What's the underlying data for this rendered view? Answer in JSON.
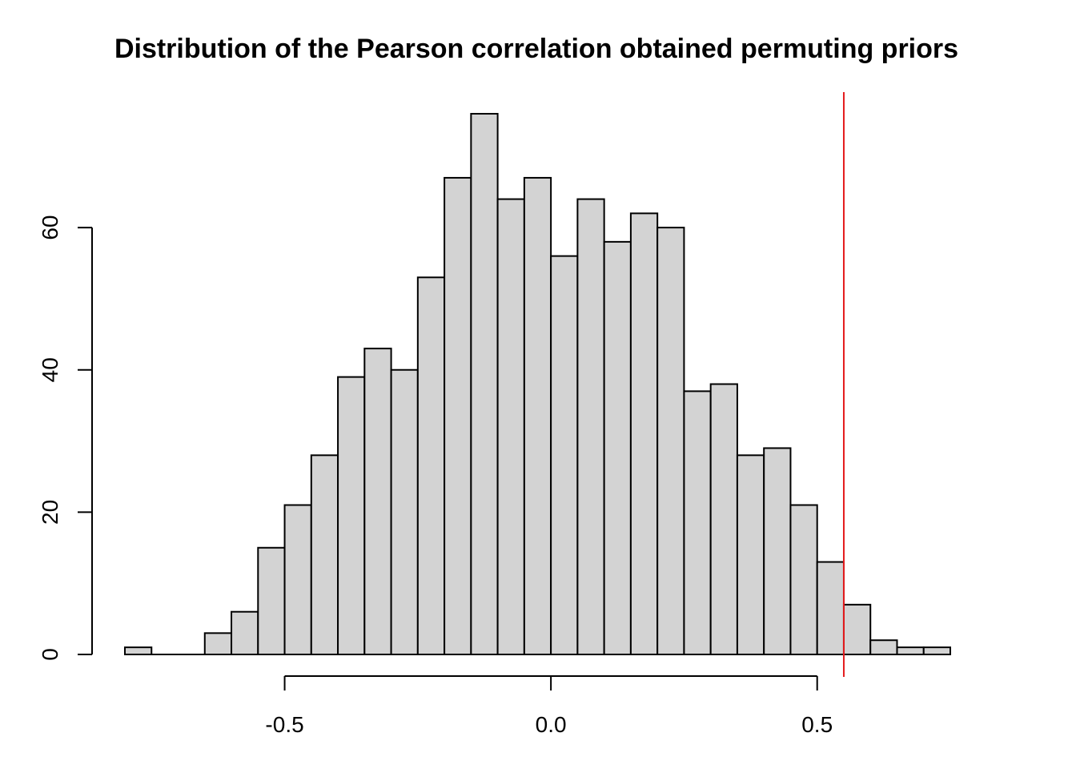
{
  "chart_data": {
    "type": "bar",
    "title": "Distribution of the Pearson correlation obtained permuting priors",
    "xlabel": "",
    "ylabel": "",
    "bin_width": 0.05,
    "bins_start": [
      -0.8,
      -0.75,
      -0.7,
      -0.65,
      -0.6,
      -0.55,
      -0.5,
      -0.45,
      -0.4,
      -0.35,
      -0.3,
      -0.25,
      -0.2,
      -0.15,
      -0.1,
      -0.05,
      0.0,
      0.05,
      0.1,
      0.15,
      0.2,
      0.25,
      0.3,
      0.35,
      0.4,
      0.45,
      0.5,
      0.55,
      0.6,
      0.65,
      0.7
    ],
    "values": [
      1,
      0,
      0,
      3,
      6,
      15,
      21,
      28,
      39,
      43,
      40,
      53,
      67,
      76,
      64,
      67,
      56,
      64,
      58,
      62,
      60,
      37,
      38,
      28,
      29,
      21,
      13,
      7,
      2,
      1,
      1
    ],
    "xlim": [
      -0.8,
      0.75
    ],
    "ylim": [
      0,
      76
    ],
    "x_ticks": [
      -0.5,
      0.0,
      0.5
    ],
    "x_tick_labels": [
      "-0.5",
      "0.0",
      "0.5"
    ],
    "y_ticks": [
      0,
      20,
      40,
      60
    ],
    "y_tick_labels": [
      "0",
      "20",
      "40",
      "60"
    ],
    "reference_line": {
      "x": 0.55,
      "color": "#e41a1c"
    },
    "bar_color": "#d3d3d3",
    "grid": false,
    "legend": "none"
  }
}
